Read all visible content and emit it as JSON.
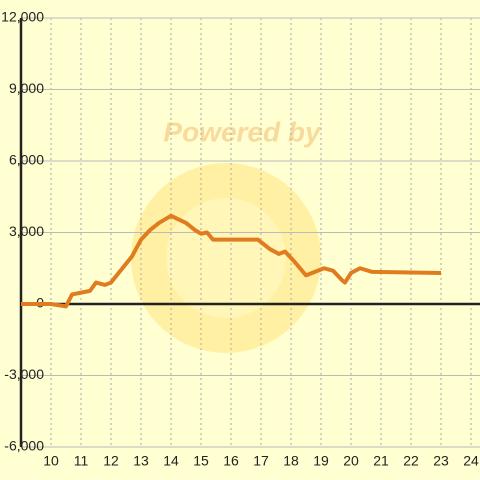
{
  "chart_data": {
    "type": "line",
    "watermark": "Powered by",
    "x": [
      9,
      10,
      10.5,
      10.7,
      11.3,
      11.5,
      11.8,
      12,
      12.7,
      13,
      13.3,
      13.6,
      14,
      14.5,
      14.8,
      15,
      15.2,
      15.4,
      16.9,
      17.3,
      17.6,
      17.8,
      18.1,
      18.5,
      18.9,
      19.1,
      19.4,
      19.7,
      19.8,
      20,
      20.3,
      20.7,
      23
    ],
    "series": [
      {
        "color": "#e07b20",
        "values": [
          0,
          0,
          -100,
          400,
          550,
          900,
          800,
          900,
          2000,
          2700,
          3100,
          3400,
          3700,
          3400,
          3100,
          2950,
          3000,
          2700,
          2700,
          2300,
          2100,
          2200,
          1800,
          1200,
          1400,
          1500,
          1400,
          1000,
          900,
          1300,
          1500,
          1350,
          1300
        ]
      }
    ],
    "xlim": [
      9,
      24.3
    ],
    "xticks": [
      10,
      11,
      12,
      13,
      14,
      15,
      16,
      17,
      18,
      19,
      20,
      21,
      22,
      23,
      24
    ],
    "ylim": [
      -6000,
      12000
    ],
    "yticks": [
      {
        "value": -6000,
        "label": "-6,000"
      },
      {
        "value": -3000,
        "label": "-3,000"
      },
      0,
      {
        "value": 3000,
        "label": "3,000"
      },
      {
        "value": 6000,
        "label": "6,000"
      },
      {
        "value": 9000,
        "label": "9,000"
      },
      {
        "value": 12000,
        "label": "12,000"
      }
    ],
    "grid": true
  }
}
